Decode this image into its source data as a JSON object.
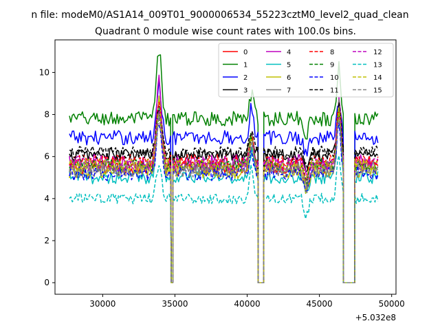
{
  "figure": {
    "suptitle": "n file: modeM0/AS1A14_009T01_9000006534_55223cztM0_level2_quad_clean",
    "offset_label": "+5.032e8"
  },
  "chart_data": {
    "type": "line",
    "title": "Quadrant 0 module wise count rates with 100.0s bins.",
    "xlabel": "",
    "ylabel": "",
    "x_offset": 503200000,
    "xlim": [
      26700,
      50300
    ],
    "ylim": [
      -0.55,
      11.55
    ],
    "xticks": [
      30000,
      35000,
      40000,
      45000,
      50000
    ],
    "xtick_labels": [
      "30000",
      "35000",
      "40000",
      "45000",
      "50000"
    ],
    "yticks": [
      0,
      2,
      4,
      6,
      8,
      10
    ],
    "ytick_labels": [
      "0",
      "2",
      "4",
      "6",
      "8",
      "10"
    ],
    "grid": false,
    "legend_position": "upper-right",
    "legend_columns": 4,
    "bin_seconds": 100,
    "segments": [
      {
        "x_start": 27700,
        "x_end": 34750,
        "zero_start": 34750,
        "zero_end": 34850
      },
      {
        "x_start": 34850,
        "x_end": 40750,
        "zero_start": 40750,
        "zero_end": 41150
      },
      {
        "x_start": 41150,
        "x_end": 46650,
        "zero_start": 46650,
        "zero_end": 47450
      },
      {
        "x_start": 47450,
        "x_end": 49100
      }
    ],
    "flares": [
      {
        "center": 33900,
        "width": 250
      },
      {
        "center": 40300,
        "width": 200
      },
      {
        "center": 46350,
        "width": 200
      }
    ],
    "dips": [
      {
        "center": 44100,
        "width": 150,
        "depth": 0.8
      }
    ],
    "series": [
      {
        "name": "0",
        "color": "#ff0000",
        "dash": "solid",
        "level": 5.5,
        "noise": 0.35,
        "peaks": [
          8.0,
          6.5,
          8.0
        ]
      },
      {
        "name": "1",
        "color": "#008000",
        "dash": "solid",
        "level": 7.8,
        "noise": 0.35,
        "peaks": [
          11.0,
          9.0,
          10.3
        ]
      },
      {
        "name": "2",
        "color": "#0000ff",
        "dash": "solid",
        "level": 6.9,
        "noise": 0.35,
        "peaks": [
          9.5,
          8.4,
          8.7
        ]
      },
      {
        "name": "3",
        "color": "#000000",
        "dash": "solid",
        "level": 6.1,
        "noise": 0.3,
        "peaks": [
          8.5,
          7.0,
          8.2
        ]
      },
      {
        "name": "4",
        "color": "#bf00bf",
        "dash": "solid",
        "level": 5.7,
        "noise": 0.4,
        "peaks": [
          9.6,
          7.1,
          8.6
        ]
      },
      {
        "name": "5",
        "color": "#00bfbf",
        "dash": "solid",
        "level": 5.0,
        "noise": 0.3,
        "peaks": [
          8.4,
          6.3,
          8.0
        ]
      },
      {
        "name": "6",
        "color": "#bfbf00",
        "dash": "solid",
        "level": 5.3,
        "noise": 0.35,
        "peaks": [
          8.6,
          7.0,
          8.2
        ]
      },
      {
        "name": "7",
        "color": "#808080",
        "dash": "solid",
        "level": 5.5,
        "noise": 0.3,
        "peaks": [
          8.2,
          7.2,
          8.6
        ]
      },
      {
        "name": "8",
        "color": "#ff0000",
        "dash": "dashed",
        "level": 5.8,
        "noise": 0.3,
        "peaks": [
          8.3,
          6.8,
          8.4
        ]
      },
      {
        "name": "9",
        "color": "#008000",
        "dash": "dashed",
        "level": 5.6,
        "noise": 0.3,
        "peaks": [
          8.0,
          6.9,
          8.1
        ]
      },
      {
        "name": "10",
        "color": "#0000ff",
        "dash": "dashed",
        "level": 5.2,
        "noise": 0.35,
        "peaks": [
          7.8,
          6.2,
          7.5
        ]
      },
      {
        "name": "11",
        "color": "#000000",
        "dash": "dashed",
        "level": 6.2,
        "noise": 0.3,
        "peaks": [
          8.2,
          7.1,
          8.3
        ]
      },
      {
        "name": "12",
        "color": "#bf00bf",
        "dash": "dashed",
        "level": 5.6,
        "noise": 0.3,
        "peaks": [
          8.4,
          6.9,
          8.0
        ]
      },
      {
        "name": "13",
        "color": "#00bfbf",
        "dash": "dashed",
        "level": 4.0,
        "noise": 0.25,
        "peaks": [
          5.5,
          5.5,
          6.0
        ]
      },
      {
        "name": "14",
        "color": "#bfbf00",
        "dash": "dashed",
        "level": 5.6,
        "noise": 0.3,
        "peaks": [
          8.2,
          6.8,
          8.1
        ]
      },
      {
        "name": "15",
        "color": "#808080",
        "dash": "dashed",
        "level": 5.3,
        "noise": 0.3,
        "peaks": [
          7.9,
          6.6,
          7.9
        ]
      }
    ]
  }
}
